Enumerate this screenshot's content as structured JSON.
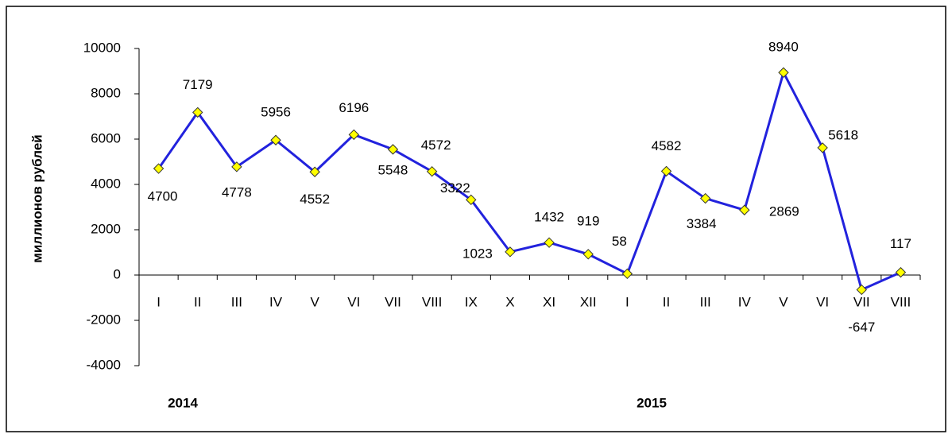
{
  "chart_data": {
    "type": "line",
    "y_label": "миллионов рублей",
    "categories": [
      "I",
      "II",
      "III",
      "IV",
      "V",
      "VI",
      "VII",
      "VIII",
      "IX",
      "X",
      "XI",
      "XII",
      "I",
      "II",
      "III",
      "IV",
      "V",
      "VI",
      "VII",
      "VIII"
    ],
    "years": [
      "2014",
      "2015"
    ],
    "series": [
      {
        "name": null,
        "color": "#2222dd",
        "values": [
          4700,
          7179,
          4778,
          5956,
          4552,
          6196,
          5548,
          4572,
          3322,
          1023,
          1432,
          919,
          58,
          4582,
          3384,
          2869,
          8940,
          5618,
          -647,
          117
        ]
      }
    ],
    "marker_color": "#ffff00",
    "ylim": [
      -4000,
      10000
    ],
    "yticks": [
      -4000,
      -2000,
      0,
      2000,
      4000,
      6000,
      8000,
      10000
    ]
  }
}
